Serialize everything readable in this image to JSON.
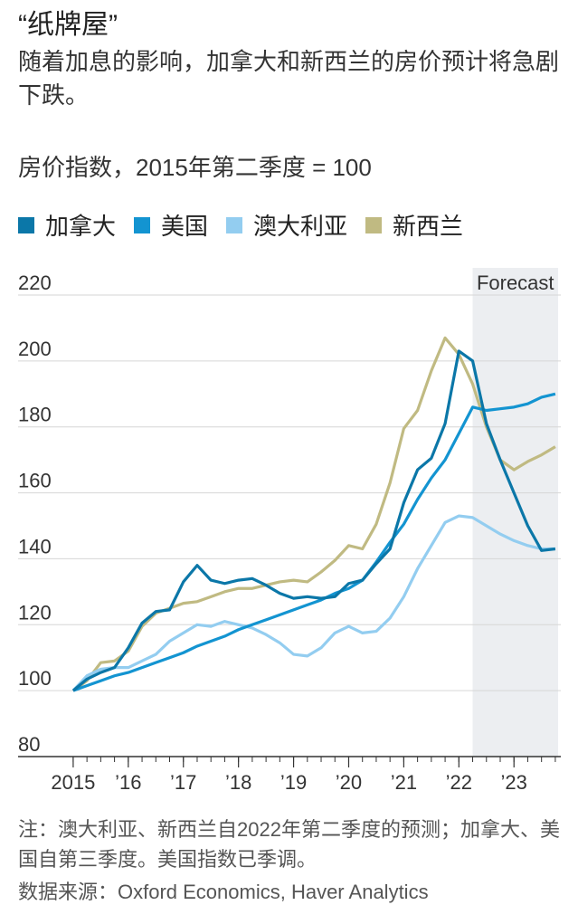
{
  "chart_data": {
    "type": "line",
    "title": "“纸牌屋”",
    "subtitle": "随着加息的影响，加拿大和新西兰的房价预计将急剧下跌。",
    "y_label": "房价指数，2015年第二季度 = 100",
    "annotation": "Forecast",
    "forecast_region": [
      2022.25,
      2023.8
    ],
    "note": "注：澳大利亚、新西兰自2022年第二季度的预测；加拿大、美国自第三季度。美国指数已季调。",
    "source": "数据来源：Oxford Economics, Haver Analytics",
    "x": [
      2015,
      2015.25,
      2015.5,
      2015.75,
      2016,
      2016.25,
      2016.5,
      2016.75,
      2017,
      2017.25,
      2017.5,
      2017.75,
      2018,
      2018.25,
      2018.5,
      2018.75,
      2019,
      2019.25,
      2019.5,
      2019.75,
      2020,
      2020.25,
      2020.5,
      2020.75,
      2021,
      2021.25,
      2021.5,
      2021.75,
      2022,
      2022.25,
      2022.5,
      2022.75,
      2023,
      2023.25,
      2023.5,
      2023.75
    ],
    "series": [
      {
        "name": "加拿大",
        "color": "#0b77a8",
        "values": [
          100,
          103.5,
          105.5,
          107,
          113,
          120.5,
          124,
          124.5,
          133,
          138,
          133.5,
          132.5,
          133.5,
          134,
          132,
          129.5,
          128,
          128.5,
          128,
          128.5,
          132.5,
          133.5,
          138.5,
          143,
          157,
          167,
          170.5,
          181,
          203,
          200,
          181,
          170,
          160,
          150,
          142.5,
          143
        ]
      },
      {
        "name": "美国",
        "color": "#1394d1",
        "values": [
          100,
          101.5,
          103,
          104.5,
          105.5,
          107,
          108.5,
          110,
          111.5,
          113.5,
          115,
          116.5,
          118.5,
          120,
          121.5,
          123,
          124.5,
          126,
          127.5,
          129.5,
          131,
          133.5,
          139,
          145,
          150.5,
          158,
          164.5,
          170,
          178,
          186,
          185,
          185.5,
          186,
          187,
          189,
          190
        ]
      },
      {
        "name": "澳大利亚",
        "color": "#93cdf0",
        "values": [
          100,
          104.5,
          106.5,
          107,
          107,
          109,
          111,
          115,
          117.5,
          120,
          119.5,
          121,
          120,
          119,
          117,
          114.5,
          111,
          110.5,
          113,
          117.5,
          119.5,
          117.5,
          118,
          122,
          128.5,
          137,
          144,
          151,
          153,
          152.5,
          150,
          147.5,
          145.5,
          144,
          143,
          143
        ]
      },
      {
        "name": "新西兰",
        "color": "#c0ba82",
        "values": [
          100,
          103,
          108.5,
          109,
          112,
          119.5,
          123.5,
          125,
          126.5,
          127,
          128.5,
          130,
          131,
          131,
          132,
          133,
          133.5,
          133,
          136,
          139.5,
          144,
          143,
          150.5,
          163,
          179.5,
          185,
          197,
          207,
          202,
          193,
          180,
          170,
          167,
          169.5,
          171.5,
          174
        ]
      }
    ],
    "xlim": [
      2014,
      2023.85
    ],
    "xticks": [
      {
        "value": 2015,
        "label": "2015"
      },
      {
        "value": 2016,
        "label": "’16"
      },
      {
        "value": 2017,
        "label": "’17"
      },
      {
        "value": 2018,
        "label": "’18"
      },
      {
        "value": 2019,
        "label": "’19"
      },
      {
        "value": 2020,
        "label": "’20"
      },
      {
        "value": 2021,
        "label": "’21"
      },
      {
        "value": 2022,
        "label": "’22"
      },
      {
        "value": 2023,
        "label": "’23"
      }
    ],
    "ylim": [
      80,
      220
    ],
    "yticks": [
      80,
      100,
      120,
      140,
      160,
      180,
      200,
      220
    ],
    "grid": true
  }
}
